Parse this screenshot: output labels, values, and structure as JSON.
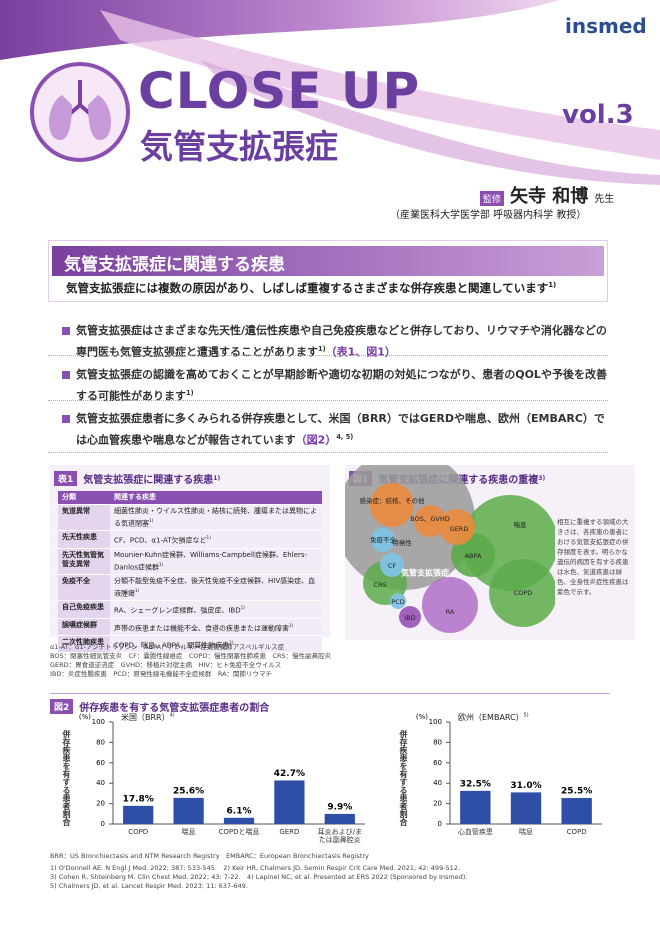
{
  "header": {
    "logo": "insmed",
    "title": "CLOSE UP",
    "subtitle": "気管支拡張症",
    "volume": "vol.3",
    "supervisor_label": "監修",
    "supervisor_name": "矢寺 和博",
    "honorific": "先生",
    "affiliation": "（産業医科大学医学部 呼吸器内科学 教授）"
  },
  "section": {
    "title": "気管支拡張症に関連する疾患",
    "lead": "気管支拡張症には複数の原因があり、しばしば重複するさまざまな併存疾患と関連しています",
    "lead_ref": "1)"
  },
  "bullets": [
    {
      "text": "気管支拡張症はさまざまな先天性/遺伝性疾患や自己免疫疾患などと併存しており、リウマチや消化器などの専門医も気管支拡張症と遭遇することがあります",
      "ref": "1)",
      "link": "（表1、図1）"
    },
    {
      "text": "気管支拡張症の認識を高めておくことが早期診断や適切な初期の対処につながり、患者のQOLや予後を改善する可能性があります",
      "ref": "1)"
    },
    {
      "text": "気管支拡張症患者に多くみられる併存疾患として、米国（BRR）ではGERDや喘息、欧州（EMBARC）では心血管疾患や喘息などが報告されています",
      "link": "（図2）",
      "ref": "4, 5)"
    }
  ],
  "table": {
    "label": "表1",
    "title": "気管支拡張症に関連する疾患",
    "title_ref": "1)",
    "columns": [
      "分類",
      "関連する疾患"
    ],
    "rows": [
      [
        "気道異常",
        "細菌性肺炎・ウイルス性肺炎・結核に続発、腫瘍または異物による気道閉塞",
        "1)"
      ],
      [
        "先天性疾患",
        "CF、PCD、α1-AT欠損症など",
        "1)"
      ],
      [
        "先天性気管気管支異常",
        "Mounier-Kuhn症候群、Williams-Campbell症候群、Ehlers-Danlos症候群",
        "1)"
      ],
      [
        "免疫不全",
        "分類不能型免疫不全症、後天性免疫不全症候群、HIV感染症、血液腫瘍",
        "1)"
      ],
      [
        "自己免疫疾患",
        "RA、シェーグレン症候群、強皮症、IBD",
        "1)"
      ],
      [
        "誤嚥症候群",
        "声帯の疾患または機能不全、食道の疾患または運動障害",
        "1)"
      ],
      [
        "二次性肺疾患",
        "COPD、喘息、ABPA、間質性肺疾患",
        "2)"
      ]
    ]
  },
  "abbreviations": [
    "α1-AT：α1-アンチトリプシン　ABPA：アレルギー性気管支肺アスペルギルス症",
    "BOS：閉塞性細気管支炎　CF：嚢胞性線維症　COPD：慢性閉塞性肺疾患　CRS：慢性副鼻腔炎",
    "GERD：胃食道逆流症　GVHD：移植片対宿主病　HIV：ヒト免疫不全ウイルス",
    "IBD：炎症性腸疾患　PCD：原発性線毛機能不全症候群　RA：関節リウマチ"
  ],
  "figure1": {
    "label": "図1",
    "title": "気管支拡張症に関連する疾患の重複",
    "title_ref": "3)",
    "bubbles": [
      "感染症：結核、その他",
      "BOS、GVHD",
      "GERD",
      "免疫不全",
      "特発性",
      "喘息",
      "CF",
      "気管支拡張症",
      "ABPA",
      "CRS",
      "COPD",
      "PCD",
      "IBD",
      "RA"
    ],
    "caption": "相互に重複する領域の大きさは、各疾患の患者における気管支拡張症の併存頻度を表す。明らかな遺伝的病因を有する疾患は水色、気道疾患は緑色、全身性炎症性疾患は紫色で示す。"
  },
  "figure2": {
    "label": "図2",
    "title": "併存疾患を有する気管支拡張症患者の割合"
  },
  "chart_data": [
    {
      "type": "bar",
      "title": "米国（BRR）",
      "title_ref": "4)",
      "y_unit": "(%)",
      "ylabel": "併存疾患を有する患者割合",
      "categories": [
        "COPD",
        "喘息",
        "COPDと喘息",
        "GERD",
        "耳炎および/または副鼻腔炎"
      ],
      "values": [
        17.8,
        25.6,
        6.1,
        42.7,
        9.9
      ],
      "value_labels": [
        "17.8%",
        "25.6%",
        "6.1%",
        "42.7%",
        "9.9%"
      ],
      "color": "#2f4ea6",
      "ylim": [
        0,
        100
      ],
      "yticks": [
        0,
        20,
        40,
        60,
        80,
        100
      ]
    },
    {
      "type": "bar",
      "title": "欧州（EMBARC）",
      "title_ref": "5)",
      "y_unit": "(%)",
      "ylabel": "併存疾患を有する患者割合",
      "categories": [
        "心血管疾患",
        "喘息",
        "COPD"
      ],
      "values": [
        32.5,
        31.0,
        25.5
      ],
      "value_labels": [
        "32.5%",
        "31.0%",
        "25.5%"
      ],
      "color": "#2f4ea6",
      "ylim": [
        0,
        100
      ],
      "yticks": [
        0,
        20,
        40,
        60,
        80,
        100
      ]
    }
  ],
  "footer": {
    "abbreviations": "BRR：US Bronchiectasis and NTM Research Registry　EMBARC：European Bronchiectasis Registry",
    "references": [
      "1) O'Donnell AE. N Engl J Med. 2022; 387: 533-545.　2) Keir HR, Chalmers JD. Semin Respir Crit Care Med. 2021; 42: 499-512.",
      "3) Cohen R, Shteinberg M. Clin Chest Med. 2022; 43: 7-22.　4) Lapinel NC, et al. Presented at ERS 2022 (Sponsored by Insmed).",
      "5) Chalmers JD, et al. Lancet Respir Med. 2023; 11: 637-649."
    ]
  }
}
